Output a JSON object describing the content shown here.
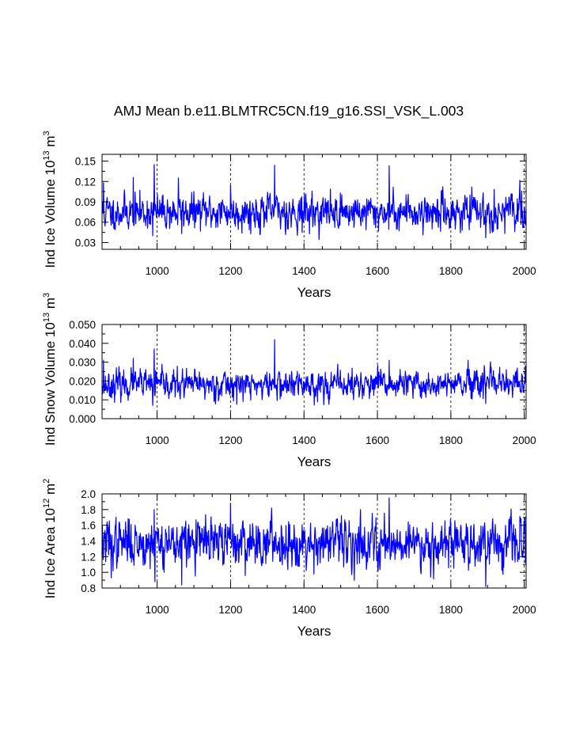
{
  "title": "AMJ Mean b.e11.BLMTRC5CN.f19_g16.SSI_VSK_L.003",
  "colors": {
    "series": "#0000ff",
    "axis": "#000000",
    "grid": "#000000"
  },
  "chart_data": [
    {
      "type": "line",
      "ylabel_main": "Ind Ice Volume 10",
      "ylabel_exp": "13",
      "ylabel_unit": " m",
      "ylabel_unit_exp": "3",
      "xlabel": "Years",
      "xlim": [
        850,
        2005
      ],
      "ylim": [
        0.02,
        0.16
      ],
      "xticks": [
        1000,
        1200,
        1400,
        1600,
        1800,
        2000
      ],
      "xtick_labels": [
        "1000",
        "1200",
        "1400",
        "1600",
        "1800",
        "2000"
      ],
      "yticks": [
        0.03,
        0.06,
        0.09,
        0.12,
        0.15
      ],
      "ytick_labels": [
        "0.03",
        "0.06",
        "0.09",
        "0.12",
        "0.15"
      ],
      "ytick_minor_step": 0.015,
      "grid_x": [
        1000,
        1200,
        1400,
        1600,
        1800,
        2000
      ],
      "series": {
        "name": "Ind Ice Volume",
        "x_start": 850,
        "x_end": 2005,
        "mean": 0.075,
        "sd": 0.012,
        "seed": 11,
        "extremes": [
          [
            854,
            0.118
          ],
          [
            935,
            0.126
          ],
          [
            988,
            0.04
          ],
          [
            992,
            0.145
          ],
          [
            1058,
            0.125
          ],
          [
            1067,
            0.043
          ],
          [
            1200,
            0.115
          ],
          [
            1320,
            0.144
          ],
          [
            1395,
            0.045
          ],
          [
            1632,
            0.143
          ],
          [
            1895,
            0.037
          ],
          [
            1993,
            0.106
          ]
        ]
      }
    },
    {
      "type": "line",
      "ylabel_main": "Ind Snow Volume 10",
      "ylabel_exp": "13",
      "ylabel_unit": " m",
      "ylabel_unit_exp": "3",
      "xlabel": "Years",
      "xlim": [
        850,
        2005
      ],
      "ylim": [
        0.0,
        0.05
      ],
      "xticks": [
        1000,
        1200,
        1400,
        1600,
        1800,
        2000
      ],
      "xtick_labels": [
        "1000",
        "1200",
        "1400",
        "1600",
        "1800",
        "2000"
      ],
      "yticks": [
        0.0,
        0.01,
        0.02,
        0.03,
        0.04,
        0.05
      ],
      "ytick_labels": [
        "0.000",
        "0.010",
        "0.020",
        "0.030",
        "0.040",
        "0.050"
      ],
      "ytick_minor_step": 0.005,
      "grid_x": [
        1000,
        1200,
        1400,
        1600,
        1800,
        2000
      ],
      "series": {
        "name": "Ind Snow Volume",
        "x_start": 850,
        "x_end": 2005,
        "mean": 0.018,
        "sd": 0.0035,
        "seed": 23,
        "extremes": [
          [
            854,
            0.031
          ],
          [
            935,
            0.032
          ],
          [
            988,
            0.007
          ],
          [
            992,
            0.037
          ],
          [
            1320,
            0.042
          ],
          [
            1632,
            0.031
          ],
          [
            1895,
            0.008
          ],
          [
            2003,
            0.028
          ]
        ]
      }
    },
    {
      "type": "line",
      "ylabel_main": "Ind Ice Area 10",
      "ylabel_exp": "12",
      "ylabel_unit": " m",
      "ylabel_unit_exp": "2",
      "xlabel": "Years",
      "xlim": [
        850,
        2005
      ],
      "ylim": [
        0.8,
        2.0
      ],
      "xticks": [
        1000,
        1200,
        1400,
        1600,
        1800,
        2000
      ],
      "xtick_labels": [
        "1000",
        "1200",
        "1400",
        "1600",
        "1800",
        "2000"
      ],
      "yticks": [
        0.8,
        1.0,
        1.2,
        1.4,
        1.6,
        1.8,
        2.0
      ],
      "ytick_labels": [
        "0.8",
        "1.0",
        "1.2",
        "1.4",
        "1.6",
        "1.8",
        "2.0"
      ],
      "ytick_minor_step": 0.1,
      "grid_x": [
        1000,
        1200,
        1400,
        1600,
        1800,
        2000
      ],
      "series": {
        "name": "Ind Ice Area",
        "x_start": 850,
        "x_end": 2005,
        "mean": 1.38,
        "sd": 0.14,
        "seed": 37,
        "extremes": [
          [
            875,
            0.93
          ],
          [
            992,
            1.8
          ],
          [
            994,
            0.88
          ],
          [
            1067,
            0.84
          ],
          [
            1200,
            1.88
          ],
          [
            1632,
            1.95
          ],
          [
            1745,
            0.94
          ],
          [
            1895,
            0.82
          ],
          [
            2003,
            1.12
          ]
        ]
      }
    }
  ]
}
